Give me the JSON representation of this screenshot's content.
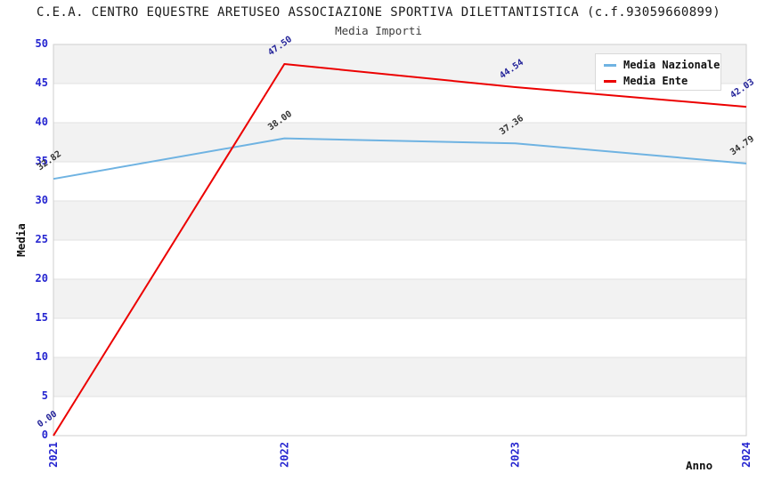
{
  "chart": {
    "title": "C.E.A. CENTRO EQUESTRE ARETUSEO ASSOCIAZIONE SPORTIVA DILETTANTISTICA (c.f.93059660899)",
    "subtitle": "Media Importi",
    "xlabel": "Anno",
    "ylabel": "Media"
  },
  "chart_data": {
    "type": "line",
    "x": [
      "2021",
      "2022",
      "2023",
      "2024"
    ],
    "series": [
      {
        "name": "Media Nazionale",
        "values": [
          32.82,
          38.0,
          37.36,
          34.79
        ],
        "color": "#6fb3e2",
        "label_color": "#333333"
      },
      {
        "name": "Media Ente",
        "values": [
          0.0,
          47.5,
          44.54,
          42.03
        ],
        "color": "#ec0000",
        "label_color": "#222299"
      }
    ],
    "ylim": [
      0,
      50
    ],
    "ytick_step": 5,
    "grid": "horizontal-bands",
    "legend_position": "top-right",
    "title": "Media Importi",
    "xlabel": "Anno",
    "ylabel": "Media"
  },
  "colors": {
    "tick_label": "#2525d0",
    "band_gray": "#f2f2f2",
    "band_white": "#ffffff",
    "grid_line": "#e1e1e1",
    "plot_border": "#cfcfcf",
    "title_text": "#1a1a1a",
    "subtitle_text": "#3d3d3d"
  }
}
